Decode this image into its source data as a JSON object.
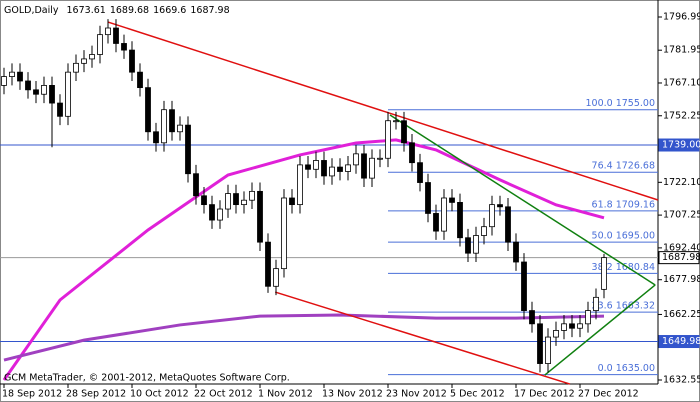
{
  "chart_data": {
    "type": "candlestick",
    "title": "GOLD,Daily",
    "footer": "GCM MetaTrader, © 2001-2012, MetaQuotes Software Corp.",
    "categories": [
      "18 Sep 2012",
      null,
      null,
      null,
      null,
      null,
      null,
      null,
      "28 Sep 2012",
      null,
      null,
      null,
      null,
      null,
      null,
      null,
      "10 Oct 2012",
      null,
      null,
      null,
      null,
      null,
      null,
      null,
      "22 Oct 2012",
      null,
      null,
      null,
      null,
      null,
      null,
      null,
      "1 Nov 2012",
      null,
      null,
      null,
      null,
      null,
      null,
      null,
      "13 Nov 2012",
      null,
      null,
      null,
      null,
      null,
      null,
      null,
      "23 Nov 2012",
      null,
      null,
      null,
      null,
      null,
      null,
      null,
      "5 Dec 2012",
      null,
      null,
      null,
      null,
      null,
      null,
      null,
      "17 Dec 2012",
      null,
      null,
      null,
      null,
      null,
      null,
      null,
      "27 Dec 2012",
      null,
      null,
      null
    ],
    "open": [
      1766,
      1770,
      1772,
      1768,
      1764,
      1762,
      1766,
      1758,
      1752,
      1772,
      1776,
      1778,
      1780,
      1789,
      1792,
      1785,
      1782,
      1772,
      1765,
      1745,
      1740,
      1755,
      1745,
      1748,
      1726,
      1716,
      1712,
      1705,
      1710,
      1717,
      1712,
      1714,
      1718,
      1695,
      1675,
      1683,
      1715,
      1712,
      1730,
      1728,
      1732,
      1725,
      1729,
      1727,
      1730,
      1735,
      1724,
      1733,
      1733,
      1750,
      1750,
      1740,
      1731,
      1722,
      1708,
      1700,
      1715,
      1713,
      1697,
      1690,
      1698,
      1702,
      1712,
      1711,
      1695,
      1686,
      1664,
      1658,
      1640,
      1652,
      1655,
      1658,
      1656,
      1658,
      1664,
      1673.61
    ],
    "high": [
      1774,
      1776,
      1776,
      1772,
      1768,
      1770,
      1770,
      1762,
      1776,
      1780,
      1782,
      1784,
      1793,
      1796,
      1796,
      1789,
      1786,
      1776,
      1769,
      1749,
      1759,
      1759,
      1752,
      1752,
      1730,
      1720,
      1716,
      1714,
      1721,
      1721,
      1718,
      1722,
      1722,
      1699,
      1687,
      1719,
      1719,
      1734,
      1734,
      1736,
      1736,
      1733,
      1733,
      1734,
      1739,
      1739,
      1737,
      1737,
      1754,
      1754,
      1754,
      1744,
      1735,
      1726,
      1712,
      1719,
      1719,
      1717,
      1701,
      1702,
      1706,
      1716,
      1716,
      1715,
      1699,
      1690,
      1668,
      1662,
      1656,
      1659,
      1662,
      1662,
      1662,
      1668,
      1674,
      1689.68
    ],
    "low": [
      1762,
      1766,
      1764,
      1760,
      1758,
      1758,
      1738,
      1748,
      1748,
      1768,
      1772,
      1774,
      1776,
      1785,
      1781,
      1778,
      1768,
      1761,
      1741,
      1736,
      1736,
      1741,
      1741,
      1722,
      1712,
      1708,
      1701,
      1701,
      1706,
      1708,
      1708,
      1710,
      1691,
      1672,
      1671,
      1679,
      1708,
      1708,
      1724,
      1724,
      1721,
      1721,
      1723,
      1723,
      1726,
      1720,
      1720,
      1729,
      1729,
      1746,
      1736,
      1727,
      1718,
      1704,
      1696,
      1696,
      1709,
      1693,
      1686,
      1686,
      1694,
      1698,
      1707,
      1691,
      1682,
      1660,
      1654,
      1636,
      1636,
      1648,
      1651,
      1652,
      1652,
      1654,
      1660,
      1669.6
    ],
    "close": [
      1770,
      1772,
      1768,
      1764,
      1762,
      1766,
      1758,
      1752,
      1772,
      1776,
      1778,
      1780,
      1789,
      1792,
      1785,
      1782,
      1772,
      1765,
      1745,
      1740,
      1755,
      1745,
      1748,
      1726,
      1716,
      1712,
      1705,
      1710,
      1717,
      1712,
      1714,
      1718,
      1695,
      1675,
      1683,
      1715,
      1712,
      1730,
      1728,
      1732,
      1725,
      1729,
      1727,
      1730,
      1735,
      1724,
      1733,
      1733,
      1750,
      1750,
      1740,
      1731,
      1722,
      1708,
      1700,
      1715,
      1713,
      1697,
      1690,
      1698,
      1702,
      1712,
      1711,
      1695,
      1686,
      1664,
      1658,
      1640,
      1652,
      1655,
      1658,
      1656,
      1658,
      1664,
      1670,
      1687.98
    ],
    "ylim": [
      1630.74,
      1804.69
    ],
    "yticks": [
      1796.99,
      1781.95,
      {
        "value": 1767.1,
        "label": "1767.10"
      },
      1752.25,
      {
        "value": 1722.1,
        "label": "1722.10"
      },
      1707.25,
      {
        "value": 1692.4,
        "label": "1692.40"
      },
      1677.98,
      1662.25,
      1632.55
    ],
    "averages": [
      {
        "color": "#e020d8",
        "x": [
          0,
          7,
          18,
          28,
          37,
          44,
          49,
          54,
          62,
          69,
          75
        ],
        "values": [
          1632.55,
          1668.8,
          1700.5,
          1725.4,
          1734.5,
          1739.9,
          1741.3,
          1736.8,
          1723.2,
          1711.9,
          1706.0
        ]
      },
      {
        "color": "#a040c0",
        "x": [
          0,
          10,
          22,
          32,
          42,
          54,
          64,
          75
        ],
        "values": [
          1641.6,
          1650.6,
          1657.5,
          1661.5,
          1662.0,
          1660.6,
          1660.6,
          1661.5
        ]
      }
    ],
    "trendlines": [
      {
        "color": "#e01010",
        "x": [
          13,
          81.75
        ],
        "values": [
          1794.7,
          1714.1
        ]
      },
      {
        "color": "#e01010",
        "x": [
          33.9,
          70.75
        ],
        "values": [
          1672.4,
          1630.7
        ]
      },
      {
        "color": "#108010",
        "x": [
          48.25,
          81.4
        ],
        "values": [
          1752.6,
          1675.6
        ]
      },
      {
        "color": "#108010",
        "x": [
          67.6,
          81.4
        ],
        "values": [
          1634.8,
          1675.6
        ]
      }
    ],
    "fibo_start": 48,
    "fibo_color": "#4a6fd8",
    "fibo": [
      {
        "label": "100.0 1755.00",
        "value": 1755
      },
      {
        "label": "76.4 1726.68",
        "value": 1726.68
      },
      {
        "label": "61.8 1709.16",
        "value": 1709.16
      },
      {
        "label": "50.0 1695.00",
        "value": 1695
      },
      {
        "label": "38.2 1680.84",
        "value": 1680.84
      },
      {
        "label": "23.6 1663.32",
        "value": 1663.32
      },
      {
        "label": "0.0 1635.00",
        "value": 1635
      }
    ],
    "hlines": [
      {
        "value": 1739,
        "label": "1739.00",
        "color": "#3355cc"
      },
      {
        "value": 1687.98,
        "label": "1687.98",
        "color": "#999999"
      },
      {
        "value": 1649.98,
        "label": "1649.98",
        "color": "#3355cc"
      }
    ]
  }
}
